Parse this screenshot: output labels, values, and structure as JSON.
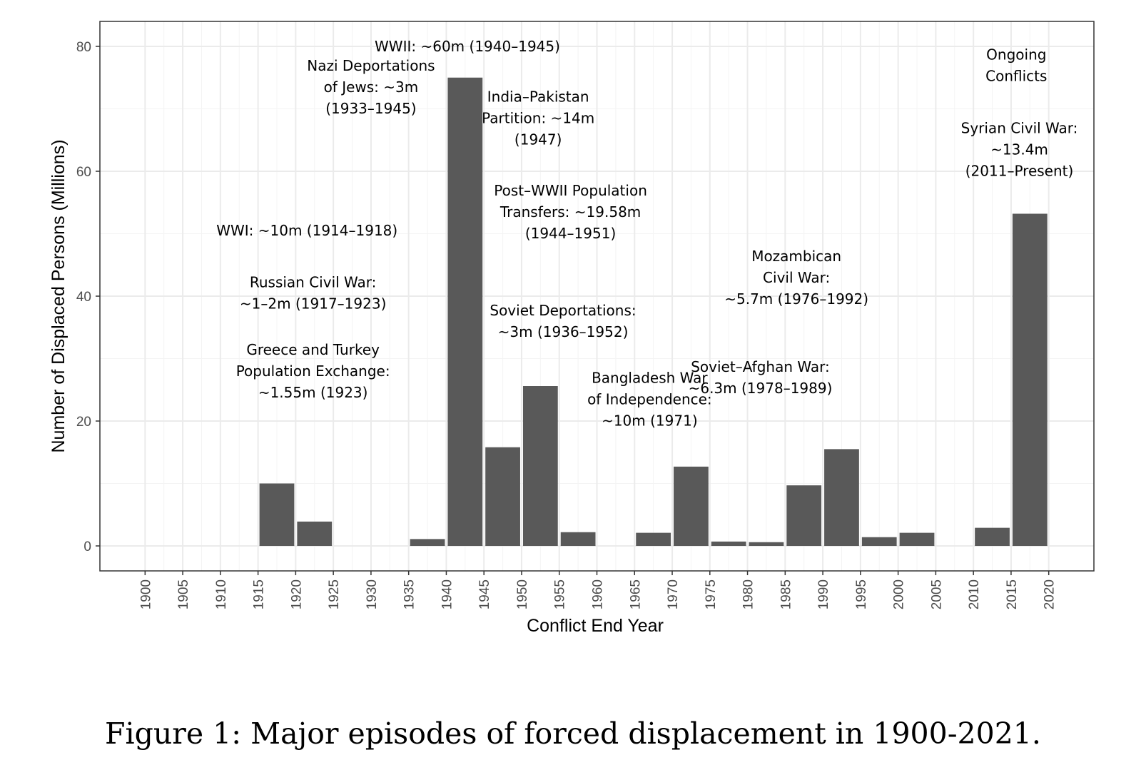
{
  "chart_data": {
    "type": "bar",
    "title": "",
    "xlabel": "Conflict End Year",
    "ylabel": "Number of Displaced Persons (Millions)",
    "xlim": [
      1894,
      2026
    ],
    "ylim": [
      -4,
      84
    ],
    "yticks": [
      0,
      20,
      40,
      60,
      80
    ],
    "xticks": [
      1900,
      1905,
      1910,
      1915,
      1920,
      1925,
      1930,
      1935,
      1940,
      1945,
      1950,
      1955,
      1960,
      1965,
      1970,
      1975,
      1980,
      1985,
      1990,
      1995,
      2000,
      2005,
      2010,
      2015,
      2020
    ],
    "bin_width": 5,
    "bins": [
      {
        "start": 1915,
        "end": 1920,
        "value": 10
      },
      {
        "start": 1920,
        "end": 1925,
        "value": 3.9
      },
      {
        "start": 1935,
        "end": 1940,
        "value": 1.1
      },
      {
        "start": 1940,
        "end": 1945,
        "value": 75
      },
      {
        "start": 1945,
        "end": 1950,
        "value": 15.8
      },
      {
        "start": 1950,
        "end": 1955,
        "value": 25.6
      },
      {
        "start": 1955,
        "end": 1960,
        "value": 2.2
      },
      {
        "start": 1965,
        "end": 1970,
        "value": 2.1
      },
      {
        "start": 1970,
        "end": 1975,
        "value": 12.7
      },
      {
        "start": 1975,
        "end": 1980,
        "value": 0.7
      },
      {
        "start": 1980,
        "end": 1985,
        "value": 0.6
      },
      {
        "start": 1985,
        "end": 1990,
        "value": 9.7
      },
      {
        "start": 1990,
        "end": 1995,
        "value": 15.5
      },
      {
        "start": 1995,
        "end": 2000,
        "value": 1.4
      },
      {
        "start": 2000,
        "end": 2005,
        "value": 2.1
      },
      {
        "start": 2010,
        "end": 2015,
        "value": 2.9
      },
      {
        "start": 2015,
        "end": 2020,
        "value": 53.2
      }
    ],
    "annotations": [
      {
        "x": 1921.5,
        "y": 50.5,
        "anchor": "middle",
        "lines": [
          "WWI: ~10m (1914–1918)"
        ]
      },
      {
        "x": 1922.3,
        "y": 40.5,
        "anchor": "middle",
        "lines": [
          "Russian Civil War:",
          "~1–2m (1917–1923)"
        ]
      },
      {
        "x": 1922.3,
        "y": 28,
        "anchor": "middle",
        "lines": [
          "Greece and Turkey",
          "Population Exchange:",
          "~1.55m (1923)"
        ]
      },
      {
        "x": 1930,
        "y": 73.5,
        "anchor": "middle",
        "lines": [
          "Nazi Deportations",
          "of Jews: ~3m",
          "(1933–1945)"
        ]
      },
      {
        "x": 1942.8,
        "y": 80,
        "anchor": "middle",
        "lines": [
          "WWII: ~60m (1940–1945)"
        ]
      },
      {
        "x": 1952.2,
        "y": 68.5,
        "anchor": "middle",
        "lines": [
          "India–Pakistan",
          "Partition: ~14m",
          "(1947)"
        ]
      },
      {
        "x": 1956.5,
        "y": 53.5,
        "anchor": "middle",
        "lines": [
          "Post–WWII Population",
          "Transfers: ~19.58m",
          "(1944–1951)"
        ]
      },
      {
        "x": 1955.5,
        "y": 36,
        "anchor": "middle",
        "lines": [
          "Soviet Deportations:",
          "~3m (1936–1952)"
        ]
      },
      {
        "x": 1967,
        "y": 23.5,
        "anchor": "middle",
        "lines": [
          "Bangladesh War",
          "of Independence:",
          "~10m (1971)"
        ]
      },
      {
        "x": 1981.7,
        "y": 27,
        "anchor": "middle",
        "lines": [
          "Soviet–Afghan War:",
          "~6.3m (1978–1989)"
        ]
      },
      {
        "x": 1986.5,
        "y": 43,
        "anchor": "middle",
        "lines": [
          "Mozambican",
          "Civil War:",
          "~5.7m (1976–1992)"
        ]
      },
      {
        "x": 2015.7,
        "y": 77,
        "anchor": "middle",
        "lines": [
          "Ongoing",
          "Conflicts"
        ]
      },
      {
        "x": 2016.1,
        "y": 63.5,
        "anchor": "middle",
        "lines": [
          "Syrian Civil War:",
          "~13.4m",
          "(2011–Present)"
        ]
      }
    ],
    "colors": {
      "bar": "#595959",
      "grid_major": "#ebebeb",
      "grid_minor": "#f4f4f4",
      "frame": "#333333"
    }
  },
  "caption": "Figure 1: Major episodes of forced displacement in 1900-2021."
}
